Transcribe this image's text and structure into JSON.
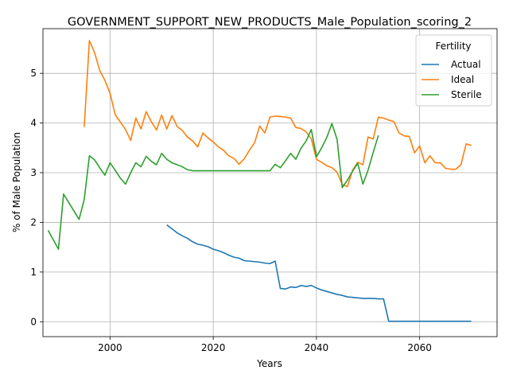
{
  "chart_data": {
    "type": "line",
    "title": "GOVERNMENT_SUPPORT_NEW_PRODUCTS_Male_Population_scoring_2",
    "xlabel": "Years",
    "ylabel": "% of Male Population",
    "xlim": [
      1987,
      2075
    ],
    "ylim": [
      -0.3,
      5.9
    ],
    "xticks": [
      2000,
      2020,
      2040,
      2060
    ],
    "yticks": [
      0,
      1,
      2,
      3,
      4,
      5
    ],
    "grid": true,
    "legend": {
      "title": "Fertility",
      "position": "top-right"
    },
    "series": [
      {
        "name": "Actual",
        "color": "#1f77b4",
        "points": [
          [
            2011,
            1.95
          ],
          [
            2012,
            1.87
          ],
          [
            2013,
            1.79
          ],
          [
            2014,
            1.73
          ],
          [
            2015,
            1.68
          ],
          [
            2016,
            1.61
          ],
          [
            2017,
            1.56
          ],
          [
            2018,
            1.54
          ],
          [
            2019,
            1.51
          ],
          [
            2020,
            1.46
          ],
          [
            2021,
            1.43
          ],
          [
            2022,
            1.39
          ],
          [
            2023,
            1.34
          ],
          [
            2024,
            1.3
          ],
          [
            2025,
            1.28
          ],
          [
            2026,
            1.23
          ],
          [
            2027,
            1.22
          ],
          [
            2028,
            1.21
          ],
          [
            2029,
            1.2
          ],
          [
            2030,
            1.18
          ],
          [
            2031,
            1.17
          ],
          [
            2032,
            1.22
          ],
          [
            2033,
            0.67
          ],
          [
            2034,
            0.66
          ],
          [
            2035,
            0.7
          ],
          [
            2036,
            0.69
          ],
          [
            2037,
            0.73
          ],
          [
            2038,
            0.71
          ],
          [
            2039,
            0.73
          ],
          [
            2040,
            0.68
          ],
          [
            2041,
            0.64
          ],
          [
            2042,
            0.61
          ],
          [
            2043,
            0.58
          ],
          [
            2044,
            0.55
          ],
          [
            2045,
            0.53
          ],
          [
            2046,
            0.5
          ],
          [
            2047,
            0.49
          ],
          [
            2048,
            0.48
          ],
          [
            2049,
            0.47
          ],
          [
            2050,
            0.47
          ],
          [
            2051,
            0.47
          ],
          [
            2052,
            0.46
          ],
          [
            2053,
            0.46
          ],
          [
            2054,
            0.01
          ],
          [
            2055,
            0.01
          ],
          [
            2056,
            0.01
          ],
          [
            2057,
            0.01
          ],
          [
            2058,
            0.01
          ],
          [
            2059,
            0.01
          ],
          [
            2060,
            0.01
          ],
          [
            2061,
            0.01
          ],
          [
            2062,
            0.01
          ],
          [
            2063,
            0.01
          ],
          [
            2064,
            0.01
          ],
          [
            2065,
            0.01
          ],
          [
            2066,
            0.01
          ],
          [
            2067,
            0.01
          ],
          [
            2068,
            0.01
          ],
          [
            2069,
            0.01
          ],
          [
            2070,
            0.01
          ]
        ]
      },
      {
        "name": "Ideal",
        "color": "#ff7f0e",
        "points": [
          [
            1995,
            3.92
          ],
          [
            1996,
            5.66
          ],
          [
            1997,
            5.42
          ],
          [
            1998,
            5.06
          ],
          [
            1999,
            4.86
          ],
          [
            2000,
            4.6
          ],
          [
            2001,
            4.17
          ],
          [
            2002,
            4.02
          ],
          [
            2003,
            3.87
          ],
          [
            2004,
            3.65
          ],
          [
            2005,
            4.1
          ],
          [
            2006,
            3.88
          ],
          [
            2007,
            4.23
          ],
          [
            2008,
            4.03
          ],
          [
            2009,
            3.86
          ],
          [
            2010,
            4.16
          ],
          [
            2011,
            3.88
          ],
          [
            2012,
            4.15
          ],
          [
            2013,
            3.93
          ],
          [
            2014,
            3.85
          ],
          [
            2015,
            3.72
          ],
          [
            2016,
            3.64
          ],
          [
            2017,
            3.52
          ],
          [
            2018,
            3.8
          ],
          [
            2019,
            3.7
          ],
          [
            2020,
            3.62
          ],
          [
            2021,
            3.52
          ],
          [
            2022,
            3.45
          ],
          [
            2023,
            3.34
          ],
          [
            2024,
            3.29
          ],
          [
            2025,
            3.17
          ],
          [
            2026,
            3.28
          ],
          [
            2027,
            3.45
          ],
          [
            2028,
            3.6
          ],
          [
            2029,
            3.94
          ],
          [
            2030,
            3.8
          ],
          [
            2031,
            4.12
          ],
          [
            2032,
            4.14
          ],
          [
            2033,
            4.13
          ],
          [
            2034,
            4.12
          ],
          [
            2035,
            4.1
          ],
          [
            2036,
            3.91
          ],
          [
            2037,
            3.89
          ],
          [
            2038,
            3.82
          ],
          [
            2039,
            3.68
          ],
          [
            2040,
            3.27
          ],
          [
            2041,
            3.21
          ],
          [
            2042,
            3.14
          ],
          [
            2043,
            3.1
          ],
          [
            2044,
            3.01
          ],
          [
            2045,
            2.76
          ],
          [
            2046,
            2.72
          ],
          [
            2047,
            3.05
          ],
          [
            2048,
            3.21
          ],
          [
            2049,
            3.16
          ],
          [
            2050,
            3.72
          ],
          [
            2051,
            3.68
          ],
          [
            2052,
            4.12
          ],
          [
            2053,
            4.1
          ],
          [
            2054,
            4.06
          ],
          [
            2055,
            4.03
          ],
          [
            2056,
            3.8
          ],
          [
            2057,
            3.74
          ],
          [
            2058,
            3.73
          ],
          [
            2059,
            3.4
          ],
          [
            2060,
            3.54
          ],
          [
            2061,
            3.2
          ],
          [
            2062,
            3.34
          ],
          [
            2063,
            3.2
          ],
          [
            2064,
            3.2
          ],
          [
            2065,
            3.09
          ],
          [
            2066,
            3.07
          ],
          [
            2067,
            3.07
          ],
          [
            2068,
            3.16
          ],
          [
            2069,
            3.58
          ],
          [
            2070,
            3.55
          ]
        ]
      },
      {
        "name": "Sterile",
        "color": "#2ca02c",
        "points": [
          [
            1988,
            1.84
          ],
          [
            1989,
            1.65
          ],
          [
            1990,
            1.46
          ],
          [
            1991,
            2.57
          ],
          [
            1992,
            2.4
          ],
          [
            1993,
            2.23
          ],
          [
            1994,
            2.06
          ],
          [
            1995,
            2.46
          ],
          [
            1996,
            3.34
          ],
          [
            1997,
            3.26
          ],
          [
            1998,
            3.1
          ],
          [
            1999,
            2.95
          ],
          [
            2000,
            3.2
          ],
          [
            2001,
            3.05
          ],
          [
            2002,
            2.89
          ],
          [
            2003,
            2.77
          ],
          [
            2004,
            3.0
          ],
          [
            2005,
            3.2
          ],
          [
            2006,
            3.12
          ],
          [
            2007,
            3.33
          ],
          [
            2008,
            3.23
          ],
          [
            2009,
            3.16
          ],
          [
            2010,
            3.39
          ],
          [
            2011,
            3.27
          ],
          [
            2012,
            3.2
          ],
          [
            2013,
            3.16
          ],
          [
            2014,
            3.12
          ],
          [
            2015,
            3.06
          ],
          [
            2016,
            3.04
          ],
          [
            2017,
            3.04
          ],
          [
            2018,
            3.04
          ],
          [
            2019,
            3.04
          ],
          [
            2020,
            3.04
          ],
          [
            2021,
            3.04
          ],
          [
            2022,
            3.04
          ],
          [
            2023,
            3.04
          ],
          [
            2024,
            3.04
          ],
          [
            2025,
            3.04
          ],
          [
            2026,
            3.04
          ],
          [
            2027,
            3.04
          ],
          [
            2028,
            3.04
          ],
          [
            2029,
            3.04
          ],
          [
            2030,
            3.04
          ],
          [
            2031,
            3.04
          ],
          [
            2032,
            3.17
          ],
          [
            2033,
            3.1
          ],
          [
            2034,
            3.24
          ],
          [
            2035,
            3.39
          ],
          [
            2036,
            3.27
          ],
          [
            2037,
            3.49
          ],
          [
            2038,
            3.64
          ],
          [
            2039,
            3.87
          ],
          [
            2040,
            3.32
          ],
          [
            2041,
            3.5
          ],
          [
            2042,
            3.71
          ],
          [
            2043,
            3.99
          ],
          [
            2044,
            3.67
          ],
          [
            2045,
            2.7
          ],
          [
            2046,
            2.85
          ],
          [
            2047,
            3.03
          ],
          [
            2048,
            3.19
          ],
          [
            2049,
            2.77
          ],
          [
            2050,
            3.05
          ],
          [
            2051,
            3.41
          ],
          [
            2052,
            3.75
          ]
        ]
      }
    ]
  }
}
